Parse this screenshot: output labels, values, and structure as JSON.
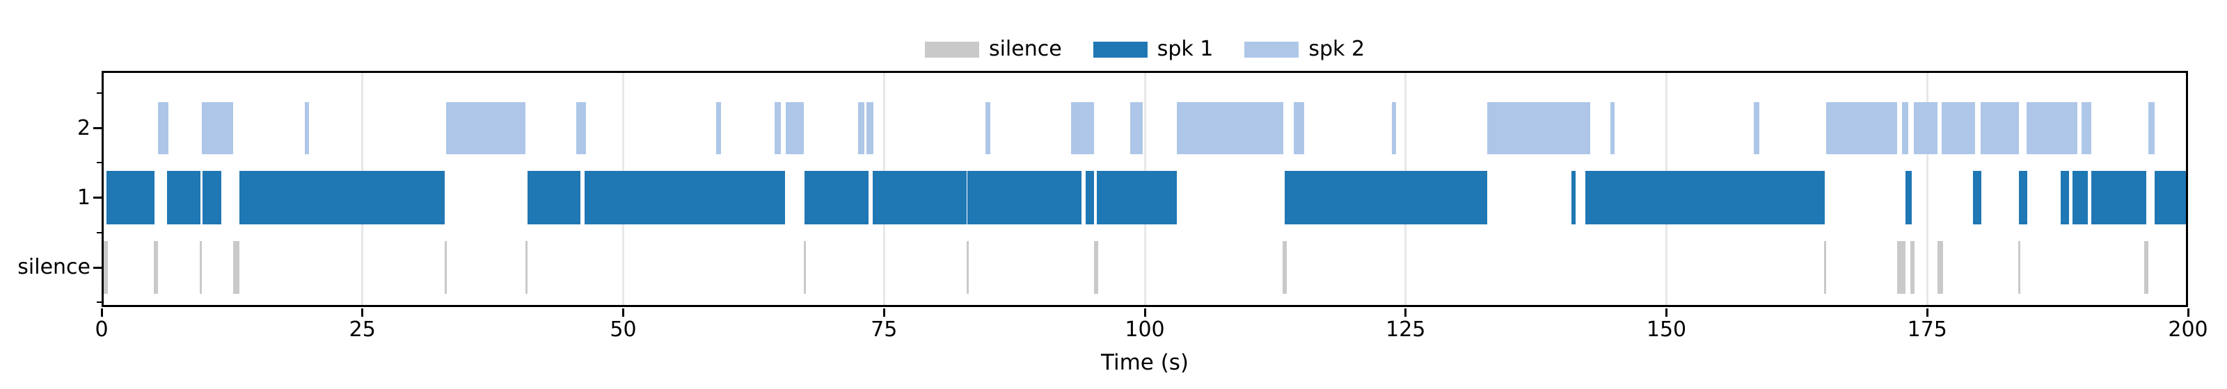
{
  "figure": {
    "background": "#ffffff",
    "axis_color": "#000000",
    "grid_color": "#e8e8e8"
  },
  "legend": {
    "entries": [
      {
        "label": "silence",
        "color": "#c9c9c9"
      },
      {
        "label": "spk 1",
        "color": "#1f77b4"
      },
      {
        "label": "spk 2",
        "color": "#aec7e8"
      }
    ]
  },
  "chart_data": {
    "type": "bar",
    "subtype": "speaker-diarization-timeline",
    "title": "",
    "xlabel": "Time (s)",
    "ylabel": "",
    "xlim": [
      0,
      200
    ],
    "xticks": [
      0,
      25,
      50,
      75,
      100,
      125,
      150,
      175,
      200
    ],
    "grid": true,
    "legend_position": "upper center",
    "rows": [
      {
        "label": "2",
        "series": "spk 2",
        "color": "#aec7e8",
        "segments": [
          [
            5.4,
            6.4
          ],
          [
            9.6,
            12.6
          ],
          [
            19.5,
            19.9
          ],
          [
            33.0,
            40.6
          ],
          [
            45.5,
            46.4
          ],
          [
            58.9,
            59.4
          ],
          [
            64.5,
            65.1
          ],
          [
            65.6,
            67.3
          ],
          [
            72.5,
            73.1
          ],
          [
            73.3,
            74.0
          ],
          [
            84.7,
            85.2
          ],
          [
            92.9,
            95.1
          ],
          [
            98.6,
            99.8
          ],
          [
            103.1,
            113.3
          ],
          [
            114.3,
            115.3
          ],
          [
            123.7,
            124.1
          ],
          [
            132.8,
            142.7
          ],
          [
            144.6,
            145.0
          ],
          [
            158.4,
            158.9
          ],
          [
            165.3,
            172.1
          ],
          [
            172.6,
            173.2
          ],
          [
            173.7,
            176.0
          ],
          [
            176.4,
            179.6
          ],
          [
            180.1,
            183.8
          ],
          [
            184.5,
            189.4
          ],
          [
            189.8,
            190.7
          ],
          [
            196.2,
            196.8
          ]
        ]
      },
      {
        "label": "1",
        "series": "spk 1",
        "color": "#1f77b4",
        "segments": [
          [
            0.5,
            5.1
          ],
          [
            6.3,
            9.5
          ],
          [
            9.7,
            11.5
          ],
          [
            13.2,
            32.9
          ],
          [
            40.8,
            45.9
          ],
          [
            46.3,
            65.5
          ],
          [
            67.4,
            73.5
          ],
          [
            73.9,
            82.9
          ],
          [
            83.0,
            93.9
          ],
          [
            94.3,
            95.1
          ],
          [
            95.4,
            103.1
          ],
          [
            113.4,
            132.8
          ],
          [
            140.9,
            141.3
          ],
          [
            142.2,
            165.2
          ],
          [
            172.9,
            173.5
          ],
          [
            179.4,
            180.2
          ],
          [
            183.8,
            184.6
          ],
          [
            187.8,
            188.6
          ],
          [
            188.9,
            190.4
          ],
          [
            190.7,
            196.0
          ],
          [
            196.8,
            200.0
          ]
        ]
      },
      {
        "label": "silence",
        "series": "silence",
        "color": "#c9c9c9",
        "segments": [
          [
            0.1,
            0.6
          ],
          [
            5.0,
            5.4
          ],
          [
            9.4,
            9.6
          ],
          [
            12.6,
            13.2
          ],
          [
            32.9,
            33.1
          ],
          [
            40.6,
            40.8
          ],
          [
            67.3,
            67.5
          ],
          [
            82.9,
            83.1
          ],
          [
            95.1,
            95.5
          ],
          [
            113.2,
            113.6
          ],
          [
            165.1,
            165.3
          ],
          [
            172.1,
            172.9
          ],
          [
            173.4,
            173.8
          ],
          [
            176.0,
            176.5
          ],
          [
            183.7,
            183.9
          ],
          [
            195.8,
            196.2
          ]
        ]
      }
    ]
  }
}
